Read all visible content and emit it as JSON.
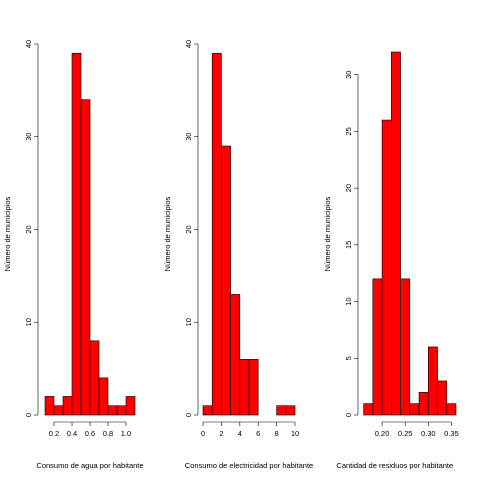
{
  "chart_data": [
    {
      "type": "histogram",
      "xlabel": "Consumo de agua por habitante",
      "ylabel": "Número de municipios",
      "bins": [
        0.1,
        0.2,
        0.3,
        0.4,
        0.5,
        0.6,
        0.7,
        0.8,
        0.9,
        1.0,
        1.1
      ],
      "counts": [
        2,
        1,
        2,
        39,
        34,
        8,
        4,
        1,
        1,
        2
      ],
      "color": "#ff0000",
      "xlim": [
        0.1,
        1.1
      ],
      "xticks": [
        0.2,
        0.4,
        0.6,
        0.8,
        {
          "value": 1.0,
          "label": "1.0"
        }
      ],
      "ylim": [
        0,
        40
      ],
      "yticks": [
        0,
        10,
        20,
        30,
        40
      ]
    },
    {
      "type": "histogram",
      "xlabel": "Consumo de electricidad por habitante",
      "ylabel": "Número de municipios",
      "bins": [
        0,
        1,
        2,
        3,
        4,
        5,
        6,
        7,
        8,
        9,
        10
      ],
      "counts": [
        1,
        39,
        29,
        13,
        6,
        6,
        0,
        0,
        1,
        1
      ],
      "color": "#ff0000",
      "xlim": [
        0,
        10
      ],
      "xticks": [
        0,
        2,
        4,
        6,
        8,
        10
      ],
      "ylim": [
        0,
        40
      ],
      "yticks": [
        0,
        10,
        20,
        30,
        40
      ]
    },
    {
      "type": "histogram",
      "xlabel": "Cantidad de residuos por habitante",
      "ylabel": "Número de municipios",
      "bins": [
        0.16,
        0.18,
        0.2,
        0.22,
        0.24,
        0.26,
        0.28,
        0.3,
        0.32,
        0.34,
        0.36
      ],
      "counts": [
        1,
        12,
        26,
        32,
        12,
        1,
        2,
        6,
        3,
        1
      ],
      "color": "#ff0000",
      "xlim": [
        0.16,
        0.36
      ],
      "xticks": [
        {
          "value": 0.2,
          "label": "0.20"
        },
        0.25,
        {
          "value": 0.3,
          "label": "0.30"
        },
        0.35
      ],
      "ylim": [
        0,
        32
      ],
      "yticks": [
        0,
        5,
        10,
        15,
        20,
        25,
        30
      ]
    }
  ]
}
